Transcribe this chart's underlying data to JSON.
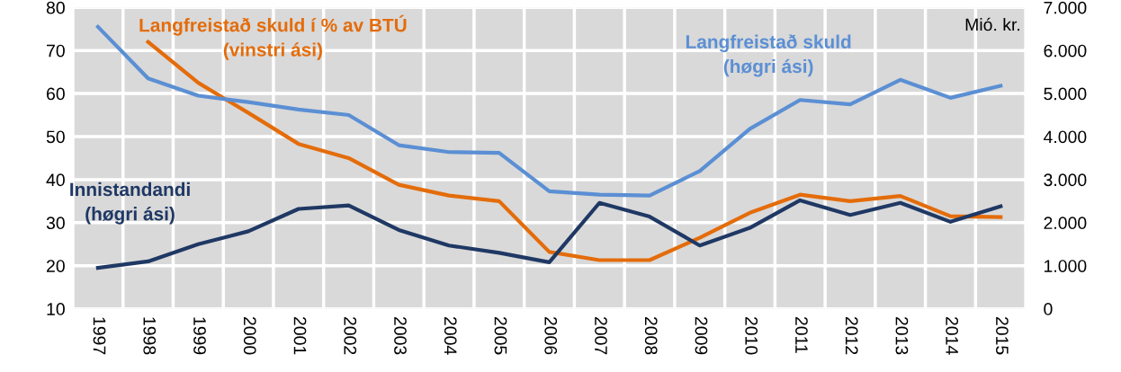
{
  "chart_data": {
    "type": "line",
    "categories": [
      "1997",
      "1998",
      "1999",
      "2000",
      "2001",
      "2002",
      "2003",
      "2004",
      "2005",
      "2006",
      "2007",
      "2008",
      "2009",
      "2010",
      "2011",
      "2012",
      "2013",
      "2014",
      "2015"
    ],
    "series": [
      {
        "name": "Langfreistað skuld\n(høgri ási)",
        "color": "#5b8fd4",
        "axis": "y2",
        "values": [
          6550,
          5350,
          4950,
          4800,
          4630,
          4500,
          3800,
          3640,
          3620,
          2730,
          2650,
          2630,
          3200,
          4180,
          4850,
          4750,
          5320,
          4900,
          5180
        ]
      },
      {
        "name": "Langfreistað skuld í % av BTÚ\n(vinstri ási)",
        "color": "#e46c0a",
        "axis": "y",
        "values": [
          null,
          72,
          62.5,
          55.5,
          48.3,
          45,
          38.8,
          36.3,
          35,
          23.2,
          21.3,
          21.3,
          26.5,
          32.3,
          36.5,
          35,
          36.2,
          31.5,
          31.3
        ]
      },
      {
        "name": "Innistandandi\n(høgri ási)",
        "color": "#1f3864",
        "axis": "y2",
        "values": [
          950,
          1100,
          1500,
          1800,
          2320,
          2400,
          1830,
          1470,
          1300,
          1080,
          2460,
          2140,
          1470,
          1880,
          2520,
          2180,
          2460,
          2020,
          2380
        ]
      }
    ],
    "ylim": [
      10,
      80
    ],
    "yticks": [
      10,
      20,
      30,
      40,
      50,
      60,
      70,
      80
    ],
    "y2lim": [
      0,
      7000
    ],
    "y2ticks": [
      {
        "value": 0,
        "label": "0"
      },
      {
        "value": 1000,
        "label": "1.000"
      },
      {
        "value": 2000,
        "label": "2.000"
      },
      {
        "value": 3000,
        "label": "3.000"
      },
      {
        "value": 4000,
        "label": "4.000"
      },
      {
        "value": 5000,
        "label": "5.000"
      },
      {
        "value": 6000,
        "label": "6.000"
      },
      {
        "value": 7000,
        "label": "7.000"
      }
    ],
    "y2label": "Mió. kr.",
    "grid": true,
    "legend": false,
    "marker": "none",
    "line_style": "solid"
  }
}
